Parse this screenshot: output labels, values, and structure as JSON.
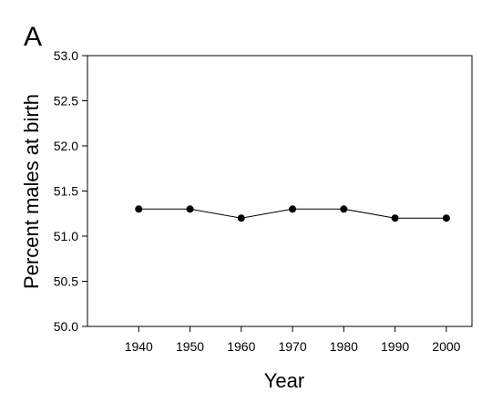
{
  "panel_label": "A",
  "chart_data": {
    "type": "line",
    "x": [
      1940,
      1950,
      1960,
      1970,
      1980,
      1990,
      2000
    ],
    "series": [
      {
        "values": [
          51.3,
          51.3,
          51.2,
          51.3,
          51.3,
          51.2,
          51.2
        ]
      }
    ],
    "xlabel": "Year",
    "ylabel": "Percent males at birth",
    "xticks": [
      "1940",
      "1950",
      "1960",
      "1970",
      "1980",
      "1990",
      "2000"
    ],
    "yticks": [
      "50.0",
      "50.5",
      "51.0",
      "51.5",
      "52.0",
      "52.5",
      "53.0"
    ],
    "xlim": [
      1930,
      2005
    ],
    "ylim": [
      50.0,
      53.0
    ],
    "grid": false,
    "marker": "filled-circle",
    "colors": {
      "line": "#000000",
      "marker": "#000000",
      "axis": "#000000"
    }
  }
}
